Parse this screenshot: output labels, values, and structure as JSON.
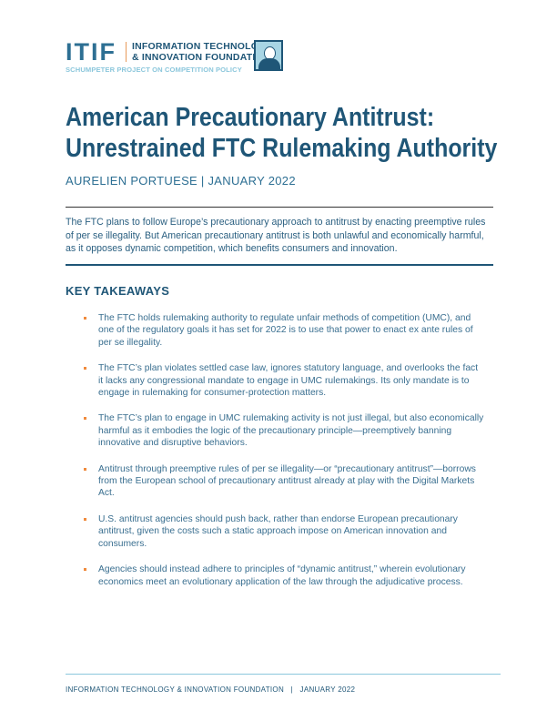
{
  "header": {
    "logo_mark": "ITIF",
    "org_line1": "INFORMATION TECHNOLOGY",
    "org_line2": "& INNOVATION FOUNDATION",
    "subtitle": "SCHUMPETER PROJECT ON COMPETITION POLICY"
  },
  "title": "American Precautionary Antitrust: Unrestrained FTC Rulemaking Authority",
  "byline": "AURELIEN PORTUESE | JANUARY 2022",
  "abstract": "The FTC plans to follow Europe’s precautionary approach to antitrust by enacting preemptive rules of per se illegality. But American precautionary antitrust is both unlawful and economically harmful, as it opposes dynamic competition, which benefits consumers and innovation.",
  "takeaways": {
    "heading": "KEY TAKEAWAYS",
    "items": [
      "The FTC holds rulemaking authority to regulate unfair methods of competition (UMC), and one of the regulatory goals it has set for 2022 is to use that power to enact ex ante rules of per se illegality.",
      "The FTC’s plan violates settled case law, ignores statutory language, and overlooks the fact it lacks any congressional mandate to engage in UMC rulemakings. Its only mandate is to engage in rulemaking for consumer-protection matters.",
      "The FTC’s plan to engage in UMC rulemaking activity is not just illegal, but also economically harmful as it embodies the logic of the precautionary principle—preemptively banning innovative and disruptive behaviors.",
      "Antitrust through preemptive rules of per se illegality—or “precautionary antitrust”—borrows from the European school of precautionary antitrust already at play with the Digital Markets Act.",
      "U.S. antitrust agencies should push back, rather than endorse European precautionary antitrust, given the costs such a static approach impose on American innovation and consumers.",
      "Agencies should instead adhere to principles of “dynamic antitrust,” wherein evolutionary economics meet an evolutionary application of the law through the adjudicative process."
    ]
  },
  "footer": "INFORMATION TECHNOLOGY & INNOVATION FOUNDATION   |   JANUARY 2022",
  "colors": {
    "primary": "#1f5677",
    "accent": "#f08a3c",
    "light": "#8cc7dc"
  }
}
